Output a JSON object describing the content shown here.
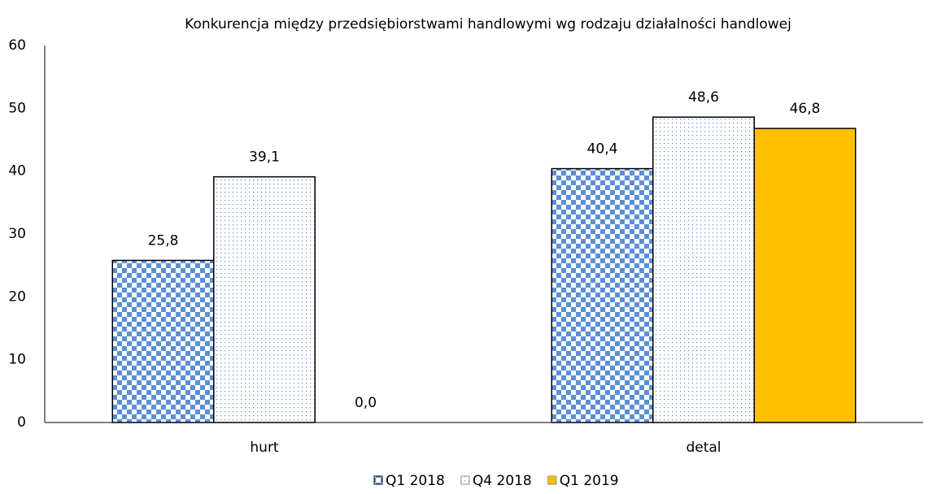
{
  "chart_data": {
    "type": "bar",
    "title": "Konkurencja między przedsiębiorstwami handlowymi wg rodzaju działalności handlowej",
    "categories": [
      "hurt",
      "detal"
    ],
    "series": [
      {
        "name": "Q1 2018",
        "color": "#5b8fd6",
        "pattern": "checker",
        "values": [
          25.8,
          40.4
        ],
        "value_labels": [
          "25,8",
          "40,4"
        ]
      },
      {
        "name": "Q4 2018",
        "color": "#5b8fd6",
        "pattern": "dots",
        "values": [
          39.1,
          48.6
        ],
        "value_labels": [
          "39,1",
          "48,6"
        ]
      },
      {
        "name": "Q1 2019",
        "color": "#ffc000",
        "pattern": "solid",
        "values": [
          0.0,
          46.8
        ],
        "value_labels": [
          "0,0",
          "46,8"
        ]
      }
    ],
    "ylim": [
      0,
      60
    ],
    "yticks": [
      0,
      10,
      20,
      30,
      40,
      50,
      60
    ],
    "grid": false,
    "legend": "bottom"
  }
}
